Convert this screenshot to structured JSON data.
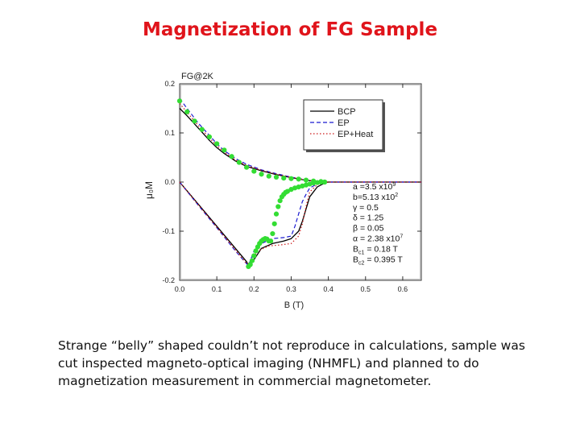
{
  "slide": {
    "title": "Magnetization of FG Sample",
    "caption": "Strange “belly” shaped couldn’t not reproduce in calculations, sample was cut inspected magneto-optical imaging (NHMFL) and planned to do magnetization measurement in commercial magnetometer."
  },
  "chart_data": {
    "type": "line",
    "title": "",
    "panel_label": "FG@2K",
    "xlabel": "B (T)",
    "ylabel": "μ₀M",
    "xlim": [
      0.0,
      0.65
    ],
    "ylim": [
      -0.2,
      0.2
    ],
    "x_ticks": [
      0.0,
      0.1,
      0.2,
      0.3,
      0.4,
      0.5,
      0.6
    ],
    "y_ticks": [
      -0.2,
      -0.1,
      0.0,
      0.1,
      0.2
    ],
    "x_tick_labels": [
      "0.0",
      "0.1",
      "0.2",
      "0.3",
      "0.4",
      "0.5",
      "0.6"
    ],
    "y_tick_labels": [
      "-0.2",
      "-0.1",
      "0.0",
      "0.1",
      "0.2"
    ],
    "grid": false,
    "legend": {
      "placement": "top-right",
      "entries": [
        "BCP",
        "EP",
        "EP+Heat"
      ]
    },
    "colors": {
      "BCP": "#000000",
      "EP": "#1a1ad0",
      "EP+Heat": "#cc1a1a",
      "experiment": "#33dd33"
    },
    "series": [
      {
        "name": "BCP",
        "style": "solid",
        "x": [
          0.0,
          0.02,
          0.05,
          0.08,
          0.1,
          0.12,
          0.15,
          0.18,
          0.22,
          0.26,
          0.3,
          0.33,
          0.36,
          0.38,
          0.4,
          0.45,
          0.5,
          0.55,
          0.6,
          0.65
        ],
        "y": [
          0.15,
          0.135,
          0.11,
          0.085,
          0.07,
          0.058,
          0.043,
          0.032,
          0.023,
          0.015,
          0.009,
          0.005,
          0.002,
          0.0005,
          0.0,
          0.0,
          0.0,
          0.0,
          0.0,
          0.0
        ]
      },
      {
        "name": "BCP",
        "style": "solid",
        "x": [
          0.0,
          0.05,
          0.1,
          0.15,
          0.18,
          0.185,
          0.2,
          0.22,
          0.25,
          0.28,
          0.3,
          0.32,
          0.33,
          0.34,
          0.35,
          0.37,
          0.39,
          0.4
        ],
        "y": [
          0.0,
          -0.045,
          -0.09,
          -0.135,
          -0.162,
          -0.17,
          -0.158,
          -0.135,
          -0.125,
          -0.12,
          -0.115,
          -0.1,
          -0.08,
          -0.055,
          -0.03,
          -0.01,
          -0.002,
          0.0
        ]
      },
      {
        "name": "EP",
        "style": "dashed",
        "x": [
          0.0,
          0.02,
          0.05,
          0.08,
          0.1,
          0.12,
          0.15,
          0.18,
          0.22,
          0.26,
          0.3,
          0.33,
          0.36,
          0.38,
          0.4,
          0.45,
          0.5,
          0.55,
          0.6,
          0.65
        ],
        "y": [
          0.17,
          0.15,
          0.12,
          0.095,
          0.078,
          0.064,
          0.048,
          0.036,
          0.025,
          0.017,
          0.01,
          0.006,
          0.0025,
          0.0008,
          0.0,
          0.0,
          0.0,
          0.0,
          0.0,
          0.0
        ]
      },
      {
        "name": "EP",
        "style": "dashed",
        "x": [
          0.0,
          0.05,
          0.1,
          0.15,
          0.175,
          0.185,
          0.19,
          0.2,
          0.22,
          0.25,
          0.28,
          0.3,
          0.31,
          0.32,
          0.33,
          0.34,
          0.35,
          0.37,
          0.39,
          0.4
        ],
        "y": [
          0.0,
          -0.047,
          -0.093,
          -0.14,
          -0.162,
          -0.17,
          -0.16,
          -0.14,
          -0.125,
          -0.115,
          -0.113,
          -0.11,
          -0.09,
          -0.065,
          -0.04,
          -0.025,
          -0.012,
          -0.004,
          -0.001,
          0.0
        ]
      },
      {
        "name": "EP+Heat",
        "style": "dotted",
        "x": [
          0.0,
          0.02,
          0.05,
          0.08,
          0.1,
          0.12,
          0.15,
          0.18,
          0.22,
          0.26,
          0.3,
          0.33,
          0.36,
          0.38,
          0.4,
          0.45,
          0.5,
          0.55,
          0.6,
          0.65
        ],
        "y": [
          0.16,
          0.142,
          0.115,
          0.09,
          0.074,
          0.061,
          0.045,
          0.034,
          0.024,
          0.016,
          0.0095,
          0.0055,
          0.0022,
          0.0006,
          0.0,
          0.0,
          0.0,
          0.0,
          0.0,
          0.0
        ]
      },
      {
        "name": "EP+Heat",
        "style": "dotted",
        "x": [
          0.0,
          0.05,
          0.1,
          0.15,
          0.18,
          0.19,
          0.21,
          0.24,
          0.27,
          0.3,
          0.32,
          0.33,
          0.34,
          0.35,
          0.37,
          0.39,
          0.4
        ],
        "y": [
          0.0,
          -0.046,
          -0.092,
          -0.138,
          -0.166,
          -0.165,
          -0.14,
          -0.13,
          -0.128,
          -0.125,
          -0.11,
          -0.085,
          -0.05,
          -0.02,
          -0.005,
          -0.001,
          0.0
        ]
      },
      {
        "name": "",
        "style": "points",
        "x": [
          0.0,
          0.02,
          0.04,
          0.06,
          0.08,
          0.1,
          0.12,
          0.14,
          0.16,
          0.18,
          0.2,
          0.22,
          0.24,
          0.26,
          0.28,
          0.3,
          0.32,
          0.34,
          0.36,
          0.38,
          0.39,
          0.185,
          0.19,
          0.195,
          0.2,
          0.205,
          0.21,
          0.215,
          0.22,
          0.225,
          0.23,
          0.235,
          0.24,
          0.245,
          0.25,
          0.255,
          0.26,
          0.265,
          0.27,
          0.275,
          0.28,
          0.285,
          0.29,
          0.3,
          0.31,
          0.32,
          0.33,
          0.34,
          0.35,
          0.36,
          0.37,
          0.38,
          0.39
        ],
        "y": [
          0.165,
          0.143,
          0.124,
          0.107,
          0.092,
          0.078,
          0.065,
          0.052,
          0.04,
          0.03,
          0.022,
          0.016,
          0.012,
          0.01,
          0.008,
          0.007,
          0.006,
          0.004,
          0.002,
          0.001,
          0.0,
          -0.172,
          -0.168,
          -0.16,
          -0.15,
          -0.14,
          -0.132,
          -0.125,
          -0.12,
          -0.117,
          -0.115,
          -0.116,
          -0.12,
          -0.12,
          -0.105,
          -0.085,
          -0.065,
          -0.05,
          -0.038,
          -0.03,
          -0.025,
          -0.021,
          -0.019,
          -0.015,
          -0.012,
          -0.01,
          -0.008,
          -0.006,
          -0.004,
          -0.002,
          -0.001,
          0.0,
          0.0
        ]
      }
    ],
    "annotations": [
      {
        "base": "a =3.5 x10",
        "sup": "9"
      },
      {
        "base": "b=5.13 x10",
        "sup": "2"
      },
      {
        "base": "γ = 0.5"
      },
      {
        "base": "δ = 1.25"
      },
      {
        "base": "β = 0.05"
      },
      {
        "base": "α = 2.38 x10",
        "sup": "7"
      },
      {
        "base": "B",
        "sub": "c1",
        "tail": " = 0.18 T"
      },
      {
        "base": "B",
        "sub": "c2",
        "tail": " = 0.395 T"
      }
    ]
  }
}
